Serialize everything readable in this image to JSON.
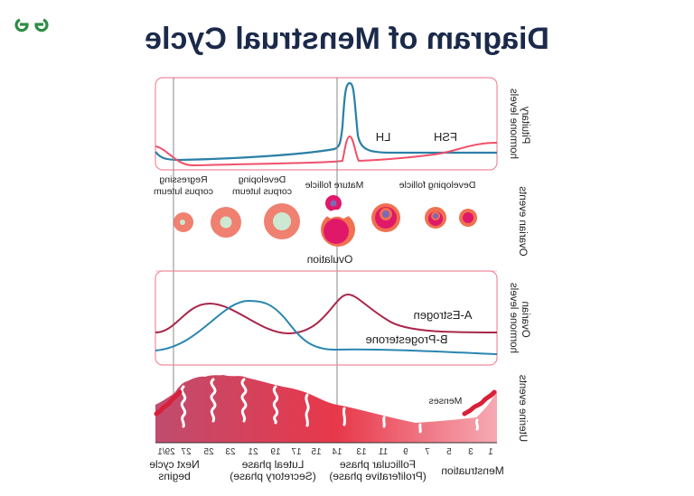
{
  "title": "Diagram of Menstrual Cycle",
  "logo": {
    "text": "GfG",
    "color": "#2f8d46"
  },
  "panels": {
    "pituitary": {
      "label_1": "Pituitary",
      "label_2": "hormone levels",
      "lh": "LH",
      "fsh": "FSH"
    },
    "ovarian_events": {
      "label": "Ovarian events",
      "developing_follicle": "Developing follicle",
      "mature_follicle": "Mature follicle",
      "developing_cl_1": "Developing",
      "developing_cl_2": "corpus luteum",
      "regressing_cl_1": "Regressing",
      "regressing_cl_2": "corpus luteum",
      "ovulation": "Ovulation"
    },
    "ovarian_hormones": {
      "label_1": "Ovarian",
      "label_2": "hormone levels",
      "estrogen": "A-Estrogen",
      "progesterone": "B-Progesterone"
    },
    "uterine": {
      "label": "Uterine events",
      "menses": "Menses"
    }
  },
  "days": [
    "1",
    "3",
    "5",
    "7",
    "9",
    "11",
    "13",
    "14",
    "15",
    "17",
    "19",
    "21",
    "23",
    "25",
    "27",
    "29/1"
  ],
  "phases": {
    "menstruation": "Menstruation",
    "follicular_1": "Follicular phase",
    "follicular_2": "(Proliferative phase)",
    "luteal_1": "Luteal phase",
    "luteal_2": "(Secretory phase)",
    "next_1": "Next cycle",
    "next_2": "begins"
  },
  "colors": {
    "lh": "#2a7fa8",
    "fsh": "#f0506a",
    "estrogen": "#a8274a",
    "progesterone": "#2a86b0",
    "panel_border": "#f08a9c",
    "title": "#1b2a4a"
  }
}
